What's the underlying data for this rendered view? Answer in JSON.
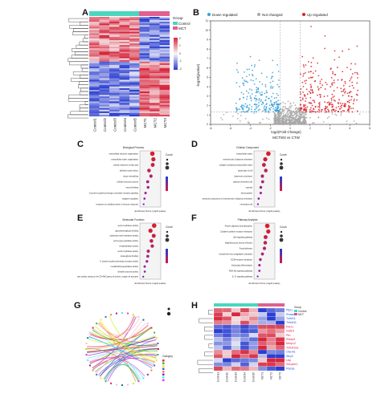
{
  "panel_letters": {
    "a": "A",
    "b": "B",
    "c": "C",
    "d": "D",
    "e": "E",
    "f": "F",
    "g": "G",
    "h": "H"
  },
  "panel_a": {
    "legend_title": "Group",
    "legend_items": [
      {
        "label": "Control",
        "color": "#4ad6c0"
      },
      {
        "label": "MCT",
        "color": "#e25f8f"
      }
    ],
    "scale_ticks": [
      "2",
      "1",
      "0",
      "-1",
      "-2"
    ],
    "samples": [
      "Control1",
      "Control2",
      "Control3",
      "Control4",
      "Control5",
      "MCT1",
      "MCT2",
      "MCT3"
    ],
    "colors": {
      "high": "#d7263d",
      "mid": "#f7f7f7",
      "low": "#2b3ed1"
    }
  },
  "panel_b": {
    "legend": [
      {
        "label": "Down regulated",
        "color": "#3aa0d8"
      },
      {
        "label": "Not changed",
        "color": "#a8a8a8"
      },
      {
        "label": "Up regulated",
        "color": "#d8232a"
      }
    ],
    "xlabel": "log2(Fold Change)",
    "ylabel": "-log10(pvalue)",
    "subtitle": "MCTW3 vs CTW",
    "xticks": [
      "-8",
      "-6",
      "-4",
      "-2",
      "0",
      "2",
      "4",
      "6",
      "8"
    ],
    "yticks": [
      "0",
      "1",
      "2",
      "3",
      "4",
      "5",
      "6",
      "7",
      "8",
      "9",
      "10",
      "11"
    ]
  },
  "panel_c": {
    "title": "Biological Process",
    "terms": [
      "extracellular structure organization",
      "extracellular matrix organization",
      "cellular response to fatty acid",
      "skeletal muscle tissue",
      "tissue remodeling",
      "cellular hormone process",
      "wound healing",
      "G protein-coupled purinergic nucleotide receptor signaling",
      "negative regulation",
      "response to unfolded protein in immune response"
    ],
    "xlabel": "Enrichment Score (-log10 pvalue)",
    "legend_title": "Count"
  },
  "panel_d": {
    "title": "Cellular Component",
    "terms": [
      "extracellular matrix",
      "external side of plasma membrane",
      "collagen-containing extracellular matrix",
      "apical part of cell",
      "basement membrane",
      "plasma membrane raft",
      "caveola",
      "blood particle",
      "anchored component of external side of plasma membrane",
      "membrane raft"
    ],
    "xlabel": "Enrichment Score (-log10 pvalue)",
    "legend_title": "Count"
  },
  "panel_e": {
    "title": "Molecular Function",
    "terms": [
      "serine hydrolase activity",
      "glycosaminoglycan binding",
      "carboxylic ester hydrolase activity",
      "serine-type peptidase activity",
      "endopeptidase activity",
      "serine hydrolase activity",
      "proteoglycan binding",
      "G protein-coupled purinergic receptor activity",
      "metallocarboxypeptidase activity",
      "dendrite process activity",
      "oxidoreductase activity, acting on the CH-NH2 group of donors, oxygen as acceptor"
    ],
    "xlabel": "Enrichment Score (-log10 pvalue)",
    "legend_title": "Count"
  },
  "panel_f": {
    "title": "Pathway Analysis",
    "terms": [
      "Protein digestion and absorption",
      "Cytokine-cytokine receptor interaction",
      "p53 signaling pathway",
      "Staphylococcus aureus infection",
      "Focal adhesion",
      "Complement and coagulation cascades",
      "ECM-receptor interaction",
      "Osteoclast differentiation",
      "PI3K-Akt signaling pathway",
      "IL-17 signaling pathway"
    ],
    "xlabel": "Enrichment Score (-log10 pvalue)",
    "legend_title": "Count"
  },
  "panel_g": {
    "legend_label": "Category"
  },
  "panel_h": {
    "legend_title": "Group",
    "legend_items": [
      {
        "label": "Control",
        "color": "#4ad6c0"
      },
      {
        "label": "MCT",
        "color": "#e25f8f"
      }
    ],
    "genes": [
      {
        "name": "Ptprc",
        "color": "#1f4fe0"
      },
      {
        "name": "Rnase2",
        "color": "#1f4fe0"
      },
      {
        "name": "Tnfsf11",
        "color": "#1f4fe0"
      },
      {
        "name": "Tnfrsf11",
        "color": "#1f4fe0"
      },
      {
        "name": "Pdrm",
        "color": "#e0173f"
      },
      {
        "name": "Gdf15",
        "color": "#e0173f"
      },
      {
        "name": "Ptn",
        "color": "#e0173f"
      },
      {
        "name": "Phlda3",
        "color": "#e0173f"
      },
      {
        "name": "Mmp12",
        "color": "#e0173f"
      },
      {
        "name": "Tnfrsf12a",
        "color": "#e0173f"
      },
      {
        "name": "Clec4a",
        "color": "#1f4fe0"
      },
      {
        "name": "Sfrp2",
        "color": "#1f4fe0"
      },
      {
        "name": "Lbp",
        "color": "#e0173f"
      },
      {
        "name": "Serpine1",
        "color": "#e0173f"
      },
      {
        "name": "Pde3a",
        "color": "#1f4fe0"
      }
    ],
    "samples": [
      "Control1",
      "Control2",
      "Control3",
      "Control4",
      "Control5",
      "MCT1",
      "MCT2",
      "MCT3"
    ]
  }
}
